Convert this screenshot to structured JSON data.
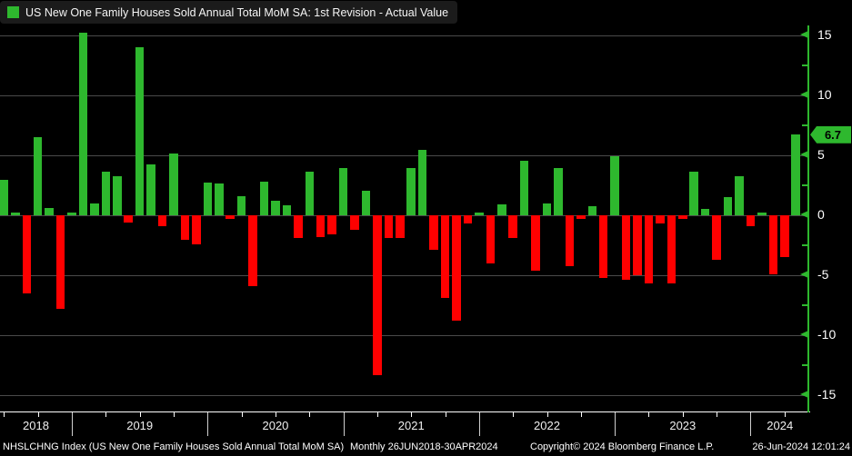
{
  "title": {
    "legend_label": "US New One Family Houses Sold Annual Total MoM SA: 1st Revision - Actual Value"
  },
  "colors": {
    "positive": "#2eb82e",
    "negative": "#ff0000",
    "axis_green": "#2eb82e",
    "gridline": "#4a4a4a",
    "background": "#000000",
    "titlebar_bg": "#1b1b1b"
  },
  "y_axis": {
    "tick_labels": [
      "15",
      "10",
      "5",
      "0",
      "-5",
      "-10",
      "-15"
    ],
    "last_value": "6.7"
  },
  "x_axis": {
    "years": [
      "2018",
      "2019",
      "2020",
      "2021",
      "2022",
      "2023",
      "2024"
    ]
  },
  "footer": {
    "ticker": "NHSLCHNG Index (US New One Family Houses Sold Annual Total MoM SA)",
    "periodicity_range": "Monthly 26JUN2018-30APR2024",
    "copyright": "Copyright© 2024 Bloomberg Finance L.P.",
    "timestamp": "26-Jun-2024 12:01:24"
  },
  "chart_data": {
    "type": "bar",
    "title": "US New One Family Houses Sold Annual Total MoM SA: 1st Revision - Actual Value",
    "xlabel": "",
    "ylabel": "",
    "ylim": [
      -16.5,
      15.8
    ],
    "yticks": [
      15,
      10,
      5,
      0,
      -5,
      -10,
      -15
    ],
    "yticks_minor": [
      12.5,
      7.5,
      2.5,
      -2.5,
      -7.5,
      -12.5
    ],
    "grid": true,
    "legend_position": "top-left",
    "last_value": 6.7,
    "x": [
      "2018-06",
      "2018-07",
      "2018-08",
      "2018-09",
      "2018-10",
      "2018-11",
      "2018-12",
      "2019-01",
      "2019-02",
      "2019-03",
      "2019-04",
      "2019-05",
      "2019-06",
      "2019-07",
      "2019-08",
      "2019-09",
      "2019-10",
      "2019-11",
      "2019-12",
      "2020-01",
      "2020-02",
      "2020-03",
      "2020-04",
      "2020-05",
      "2020-06",
      "2020-07",
      "2020-08",
      "2020-09",
      "2020-10",
      "2020-11",
      "2020-12",
      "2021-01",
      "2021-02",
      "2021-03",
      "2021-04",
      "2021-05",
      "2021-06",
      "2021-07",
      "2021-08",
      "2021-09",
      "2021-10",
      "2021-11",
      "2021-12",
      "2022-01",
      "2022-02",
      "2022-03",
      "2022-04",
      "2022-05",
      "2022-06",
      "2022-07",
      "2022-08",
      "2022-09",
      "2022-10",
      "2022-11",
      "2022-12",
      "2023-01",
      "2023-02",
      "2023-03",
      "2023-04",
      "2023-05",
      "2023-06",
      "2023-07",
      "2023-08",
      "2023-09",
      "2023-10",
      "2023-11",
      "2023-12",
      "2024-01",
      "2024-02",
      "2024-03",
      "2024-04"
    ],
    "values": [
      2.9,
      0.2,
      -6.5,
      6.5,
      0.6,
      -7.8,
      0.2,
      15.2,
      1.0,
      3.6,
      3.2,
      -0.6,
      14.0,
      4.2,
      -0.9,
      5.1,
      -2.0,
      -2.4,
      2.7,
      2.6,
      -0.3,
      1.6,
      -5.9,
      2.8,
      1.2,
      0.8,
      -1.9,
      3.6,
      -1.8,
      -1.6,
      3.9,
      -1.2,
      2.0,
      -13.3,
      -1.9,
      -1.9,
      3.9,
      5.4,
      -2.9,
      -6.9,
      -8.8,
      -0.7,
      0.2,
      -4.0,
      0.9,
      -1.9,
      4.5,
      -4.6,
      1.0,
      3.9,
      -4.2,
      -0.3,
      0.7,
      -5.2,
      4.9,
      -5.4,
      -5.0,
      -5.7,
      -0.7,
      -5.7,
      -0.3,
      3.6,
      0.5,
      -3.7,
      1.5,
      3.2,
      -0.9,
      0.2,
      -4.9,
      -3.5,
      6.7
    ]
  }
}
